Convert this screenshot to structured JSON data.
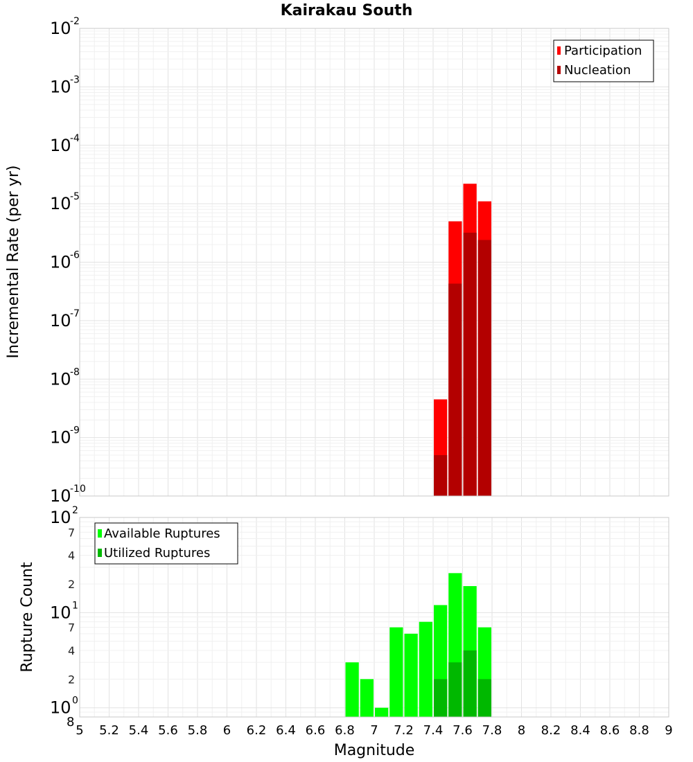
{
  "chart_data": [
    {
      "type": "bar",
      "title": "Kairakau South",
      "ylabel": "Incremental Rate (per yr)",
      "xlabel": "",
      "yscale": "log",
      "ylim": [
        1e-10,
        0.01
      ],
      "xlim": [
        5,
        9
      ],
      "bin_width": 0.1,
      "y_tick_labels": [
        {
          "base": "10",
          "exp": "-2"
        },
        {
          "base": "10",
          "exp": "-3"
        },
        {
          "base": "10",
          "exp": "-4"
        },
        {
          "base": "10",
          "exp": "-5"
        },
        {
          "base": "10",
          "exp": "-6"
        },
        {
          "base": "10",
          "exp": "-7"
        },
        {
          "base": "10",
          "exp": "-8"
        },
        {
          "base": "10",
          "exp": "-9"
        },
        {
          "base": "10",
          "exp": "-10"
        }
      ],
      "legend": {
        "position": "top-right",
        "entries": [
          "Participation",
          "Nucleation"
        ]
      },
      "series": [
        {
          "name": "Participation",
          "color": "#ff0000",
          "x": [
            7.45,
            7.55,
            7.65,
            7.75
          ],
          "values": [
            4.5e-09,
            5e-06,
            2.2e-05,
            1.1e-05
          ]
        },
        {
          "name": "Nucleation",
          "color": "#b30000",
          "x": [
            7.45,
            7.55,
            7.65,
            7.75
          ],
          "values": [
            5e-10,
            4.3e-07,
            3.2e-06,
            2.4e-06
          ]
        }
      ]
    },
    {
      "type": "bar",
      "title": "",
      "ylabel": "Rupture Count",
      "xlabel": "Magnitude",
      "yscale": "log",
      "ylim": [
        0.8,
        100
      ],
      "xlim": [
        5,
        9
      ],
      "bin_width": 0.1,
      "y_major_labels": [
        {
          "value": 100,
          "base": "10",
          "exp": "2"
        },
        {
          "value": 10,
          "base": "10",
          "exp": "1"
        },
        {
          "value": 1,
          "base": "10",
          "exp": "0"
        }
      ],
      "y_minor_labels": [
        {
          "value": 70,
          "label": "7"
        },
        {
          "value": 40,
          "label": "4"
        },
        {
          "value": 20,
          "label": "2"
        },
        {
          "value": 7,
          "label": "7"
        },
        {
          "value": 4,
          "label": "4"
        },
        {
          "value": 2,
          "label": "2"
        },
        {
          "value": 0.8,
          "label": "8"
        }
      ],
      "x_tick_labels": [
        "5",
        "5.2",
        "5.4",
        "5.6",
        "5.8",
        "6",
        "6.2",
        "6.4",
        "6.6",
        "6.8",
        "7",
        "7.2",
        "7.4",
        "7.6",
        "7.8",
        "8",
        "8.2",
        "8.4",
        "8.6",
        "8.8",
        "9"
      ],
      "legend": {
        "position": "top-left",
        "entries": [
          "Available Ruptures",
          "Utilized Ruptures"
        ]
      },
      "series": [
        {
          "name": "Available Ruptures",
          "color": "#00ff00",
          "x": [
            6.85,
            6.95,
            7.05,
            7.15,
            7.25,
            7.35,
            7.45,
            7.55,
            7.65,
            7.75
          ],
          "values": [
            3,
            2,
            1,
            7,
            6,
            8,
            12,
            26,
            19,
            7
          ]
        },
        {
          "name": "Utilized Ruptures",
          "color": "#00b800",
          "x": [
            7.45,
            7.55,
            7.65,
            7.75
          ],
          "values": [
            2,
            3,
            4,
            2
          ]
        }
      ]
    }
  ]
}
